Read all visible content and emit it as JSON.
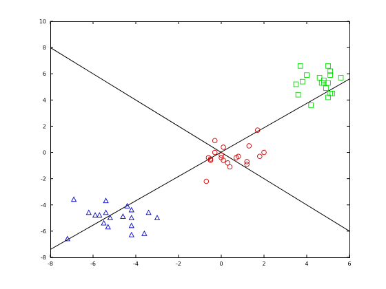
{
  "chart_data": {
    "type": "scatter",
    "xlim": [
      -8,
      6
    ],
    "ylim": [
      -8,
      10
    ],
    "x_ticks": [
      -8,
      -6,
      -4,
      -2,
      0,
      2,
      4,
      6
    ],
    "y_ticks": [
      -8,
      -6,
      -4,
      -2,
      0,
      2,
      4,
      6,
      8,
      10
    ],
    "x_tick_labels": [
      "-8",
      "-6",
      "-4",
      "-2",
      "0",
      "2",
      "4",
      "6"
    ],
    "y_tick_labels": [
      "-8",
      "-6",
      "-4",
      "-2",
      "0",
      "2",
      "4",
      "6",
      "8",
      "10"
    ],
    "grid": false,
    "box": true,
    "series": [
      {
        "marker": "triangle",
        "color": "#0000cc",
        "points": [
          [
            -7.2,
            -6.6
          ],
          [
            -6.9,
            -3.6
          ],
          [
            -6.2,
            -4.6
          ],
          [
            -5.9,
            -4.8
          ],
          [
            -5.7,
            -4.8
          ],
          [
            -5.4,
            -3.7
          ],
          [
            -5.4,
            -4.6
          ],
          [
            -5.5,
            -5.4
          ],
          [
            -5.3,
            -5.7
          ],
          [
            -5.2,
            -5.0
          ],
          [
            -4.6,
            -4.9
          ],
          [
            -4.4,
            -4.1
          ],
          [
            -4.2,
            -4.4
          ],
          [
            -4.2,
            -5.0
          ],
          [
            -4.2,
            -5.6
          ],
          [
            -4.2,
            -6.3
          ],
          [
            -3.6,
            -6.2
          ],
          [
            -3.4,
            -4.6
          ],
          [
            -3.0,
            -5.0
          ]
        ]
      },
      {
        "marker": "circle",
        "color": "#cc0000",
        "points": [
          [
            -0.7,
            -2.2
          ],
          [
            -0.6,
            -0.4
          ],
          [
            -0.5,
            -0.5
          ],
          [
            -0.5,
            -0.6
          ],
          [
            -0.3,
            0.0
          ],
          [
            -0.3,
            0.9
          ],
          [
            0.0,
            -0.2
          ],
          [
            0.0,
            -0.4
          ],
          [
            0.1,
            -0.6
          ],
          [
            0.1,
            0.4
          ],
          [
            0.3,
            -0.8
          ],
          [
            0.4,
            -1.1
          ],
          [
            0.7,
            -0.4
          ],
          [
            0.8,
            -0.3
          ],
          [
            1.2,
            -0.7
          ],
          [
            1.2,
            -0.9
          ],
          [
            1.3,
            0.5
          ],
          [
            1.7,
            1.7
          ],
          [
            1.8,
            -0.3
          ],
          [
            2.0,
            0.0
          ]
        ]
      },
      {
        "marker": "square",
        "color": "#00dd00",
        "points": [
          [
            3.5,
            5.2
          ],
          [
            3.6,
            4.4
          ],
          [
            3.7,
            6.6
          ],
          [
            3.8,
            5.4
          ],
          [
            4.0,
            5.9
          ],
          [
            4.2,
            3.6
          ],
          [
            4.6,
            5.7
          ],
          [
            4.7,
            5.3
          ],
          [
            4.8,
            5.5
          ],
          [
            4.8,
            5.3
          ],
          [
            4.9,
            4.9
          ],
          [
            5.0,
            5.3
          ],
          [
            5.0,
            4.2
          ],
          [
            5.0,
            6.6
          ],
          [
            5.1,
            5.9
          ],
          [
            5.1,
            6.2
          ],
          [
            5.1,
            4.5
          ],
          [
            5.2,
            4.5
          ],
          [
            5.6,
            5.7
          ]
        ]
      }
    ],
    "lines": [
      {
        "color": "#000000",
        "from": [
          -8,
          -7.4
        ],
        "to": [
          6,
          5.6
        ]
      },
      {
        "color": "#000000",
        "from": [
          -8,
          8.0
        ],
        "to": [
          6,
          -6.0
        ]
      }
    ]
  }
}
